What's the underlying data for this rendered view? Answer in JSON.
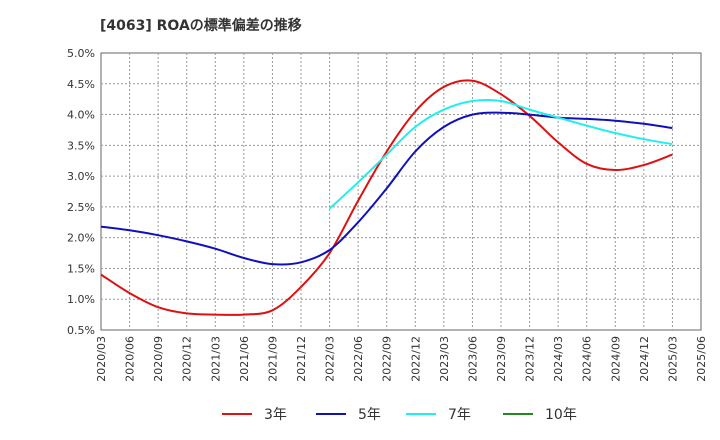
{
  "chart_data": {
    "type": "line",
    "title": "[4063]  ROAの標準偏差の推移",
    "xlabel": "",
    "ylabel": "",
    "ylim": [
      0.5,
      5.0
    ],
    "yticks": [
      "0.5%",
      "1.0%",
      "1.5%",
      "2.0%",
      "2.5%",
      "3.0%",
      "3.5%",
      "4.0%",
      "4.5%",
      "5.0%"
    ],
    "categories": [
      "2020/03",
      "2020/06",
      "2020/09",
      "2020/12",
      "2021/03",
      "2021/06",
      "2021/09",
      "2021/12",
      "2022/03",
      "2022/06",
      "2022/09",
      "2022/12",
      "2023/03",
      "2023/06",
      "2023/09",
      "2023/12",
      "2024/03",
      "2024/06",
      "2024/09",
      "2024/12",
      "2025/03",
      "2025/06"
    ],
    "grid": true,
    "legend_position": "bottom",
    "series": [
      {
        "name": "3年",
        "color": "#dd1111",
        "values": [
          1.4,
          1.1,
          0.87,
          0.77,
          0.75,
          0.75,
          0.82,
          1.2,
          1.75,
          2.6,
          3.4,
          4.05,
          4.45,
          4.55,
          4.33,
          3.98,
          3.55,
          3.2,
          3.1,
          3.18,
          3.35,
          null
        ]
      },
      {
        "name": "5年",
        "color": "#1111bb",
        "values": [
          2.18,
          2.12,
          2.04,
          1.94,
          1.82,
          1.67,
          1.57,
          1.6,
          1.8,
          2.25,
          2.8,
          3.4,
          3.8,
          4.0,
          4.03,
          4.0,
          3.95,
          3.93,
          3.9,
          3.85,
          3.78,
          null
        ]
      },
      {
        "name": "7年",
        "color": "#22eeee",
        "values": [
          null,
          null,
          null,
          null,
          null,
          null,
          null,
          null,
          2.47,
          2.9,
          3.35,
          3.8,
          4.08,
          4.22,
          4.22,
          4.08,
          3.95,
          3.82,
          3.7,
          3.6,
          3.52,
          null
        ]
      },
      {
        "name": "10年",
        "color": "#228822",
        "values": [
          null,
          null,
          null,
          null,
          null,
          null,
          null,
          null,
          null,
          null,
          null,
          null,
          null,
          null,
          null,
          null,
          null,
          null,
          null,
          null,
          null,
          null
        ]
      }
    ]
  }
}
